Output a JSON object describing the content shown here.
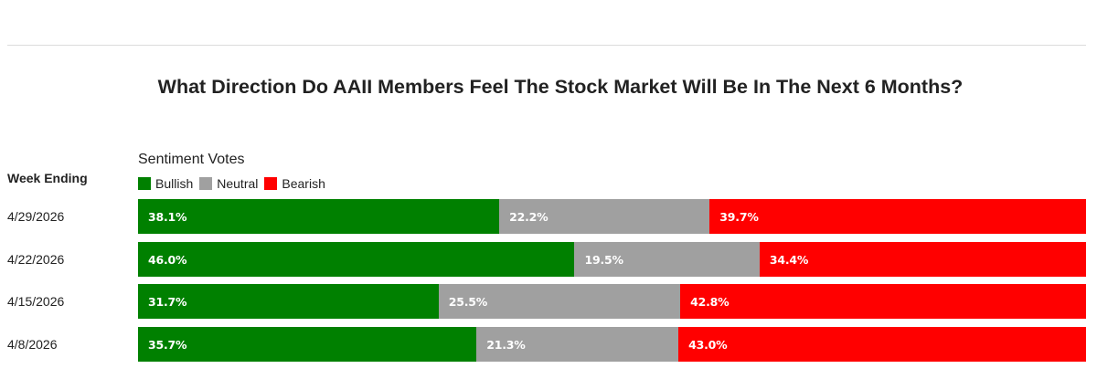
{
  "chart_data": {
    "type": "bar",
    "orientation": "horizontal",
    "stacked": "100%",
    "title": "What Direction Do AAII Members Feel The Stock Market Will Be In The Next 6 Months?",
    "category_header": "Week Ending",
    "legend_title": "Sentiment Votes",
    "legend_placement": "top-left",
    "categories": [
      "4/29/2026",
      "4/22/2026",
      "4/15/2026",
      "4/8/2026"
    ],
    "series": [
      {
        "name": "Bullish",
        "color": "#008000",
        "values": [
          38.1,
          46.0,
          31.7,
          35.7
        ],
        "labels": [
          "38.1%",
          "46.0%",
          "31.7%",
          "35.7%"
        ]
      },
      {
        "name": "Neutral",
        "color": "#a0a0a0",
        "values": [
          22.2,
          19.5,
          25.5,
          21.3
        ],
        "labels": [
          "22.2%",
          "19.5%",
          "25.5%",
          "21.3%"
        ]
      },
      {
        "name": "Bearish",
        "color": "#ff0000",
        "values": [
          39.7,
          34.4,
          42.8,
          43.0
        ],
        "labels": [
          "39.7%",
          "34.4%",
          "42.8%",
          "43.0%"
        ]
      }
    ],
    "xlim": [
      0,
      100
    ],
    "grid": false
  }
}
